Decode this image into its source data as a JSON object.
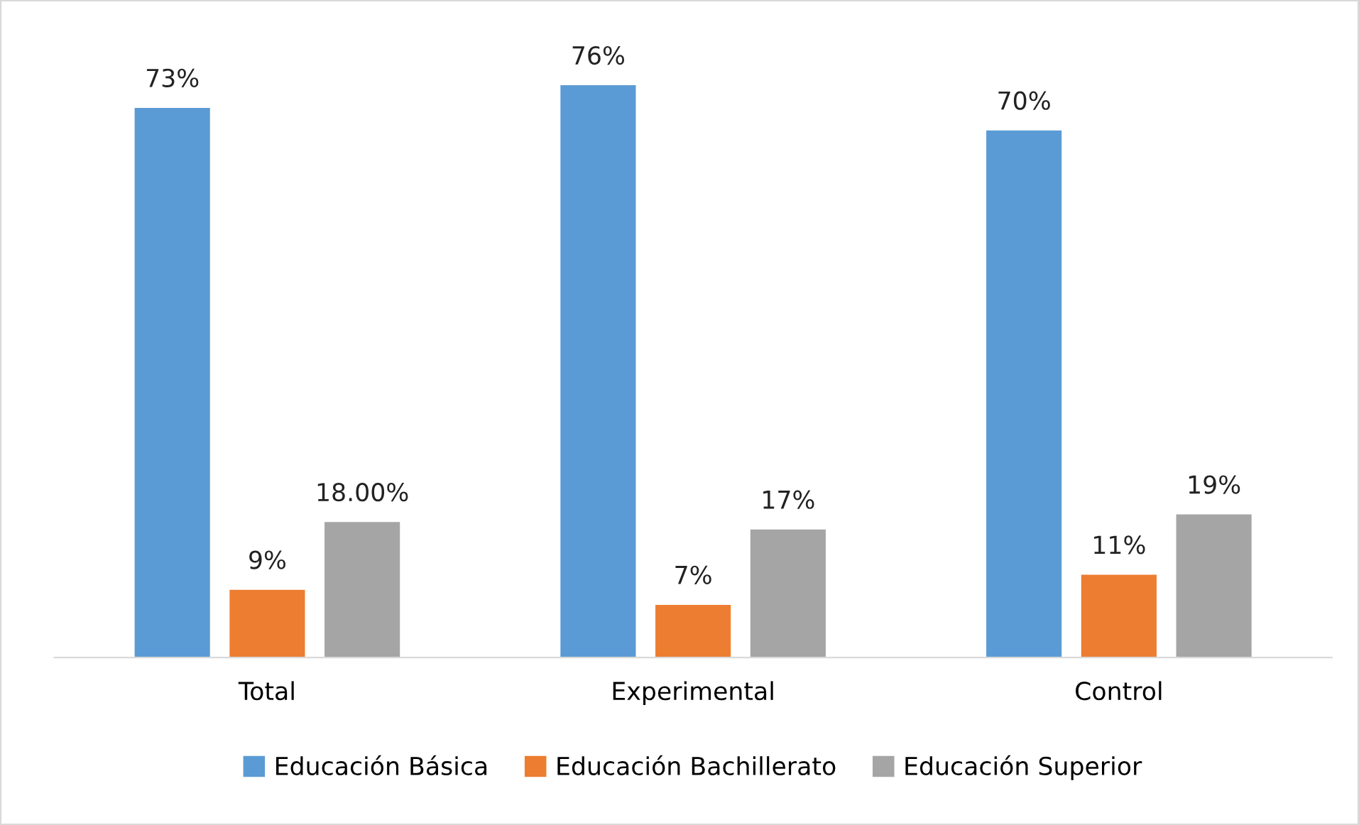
{
  "chart_data": {
    "type": "bar",
    "categories": [
      "Total",
      "Experimental",
      "Control"
    ],
    "series": [
      {
        "name": "Educación Básica",
        "color": "#5b9bd5",
        "values": [
          73,
          76,
          70
        ],
        "value_labels": [
          "73%",
          "76%",
          "70%"
        ]
      },
      {
        "name": "Educación Bachillerato",
        "color": "#ed7d31",
        "values": [
          9,
          7,
          11
        ],
        "value_labels": [
          "9%",
          "7%",
          "11%"
        ]
      },
      {
        "name": "Educación Superior",
        "color": "#a5a5a5",
        "values": [
          18.0,
          17,
          19
        ],
        "value_labels": [
          "18.00%",
          "17%",
          "19%"
        ]
      }
    ],
    "legend": "bottom",
    "grid": false
  }
}
